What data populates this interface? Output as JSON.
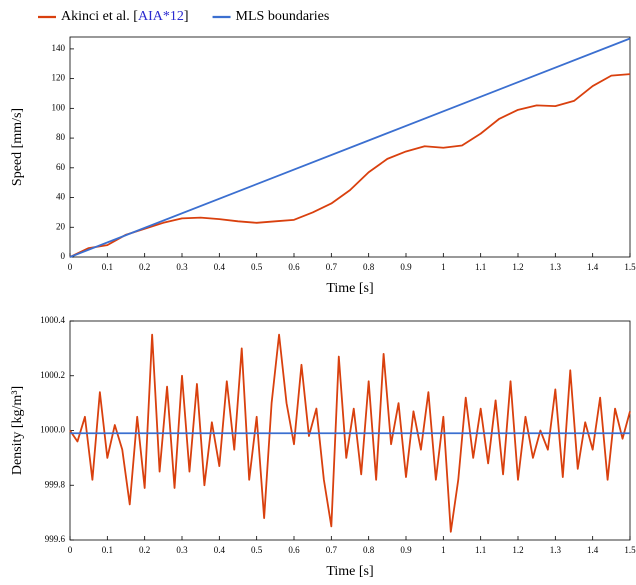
{
  "chart_data": [
    {
      "type": "line",
      "xlabel": "Time [s]",
      "ylabel": "Speed [mm/s]",
      "xlim": [
        0,
        1.5
      ],
      "xticks": [
        0,
        0.1,
        0.2,
        0.3,
        0.4,
        0.5,
        0.6,
        0.7,
        0.8,
        0.9,
        1,
        1.1,
        1.2,
        1.3,
        1.4,
        1.5
      ],
      "ylim": [
        0,
        148
      ],
      "yticks": [
        0,
        20,
        40,
        60,
        80,
        100,
        120,
        140
      ],
      "legend": "top-left",
      "series": [
        {
          "name": "Akinci et al. [AIA*12]",
          "color": "#d9400e",
          "x": [
            0,
            0.05,
            0.1,
            0.15,
            0.2,
            0.25,
            0.3,
            0.35,
            0.4,
            0.45,
            0.5,
            0.55,
            0.6,
            0.65,
            0.7,
            0.75,
            0.8,
            0.85,
            0.9,
            0.95,
            1.0,
            1.05,
            1.1,
            1.15,
            1.2,
            1.25,
            1.3,
            1.35,
            1.4,
            1.45,
            1.5
          ],
          "values": [
            0,
            6,
            8,
            15,
            19,
            23,
            26,
            26.5,
            25.5,
            24,
            23,
            24,
            25,
            30,
            36,
            45,
            57,
            66,
            71,
            74.5,
            73.5,
            75,
            83,
            93,
            99,
            102,
            101.5,
            105,
            115,
            122,
            123
          ]
        },
        {
          "name": "MLS boundaries",
          "color": "#3b6fd0",
          "x": [
            0,
            1.5
          ],
          "values": [
            0,
            147
          ]
        }
      ]
    },
    {
      "type": "line",
      "xlabel": "Time [s]",
      "ylabel": "Density [kg/m³]",
      "xlim": [
        0,
        1.5
      ],
      "xticks": [
        0,
        0.1,
        0.2,
        0.3,
        0.4,
        0.5,
        0.6,
        0.7,
        0.8,
        0.9,
        1,
        1.1,
        1.2,
        1.3,
        1.4,
        1.5
      ],
      "ylim": [
        999.6,
        1000.4
      ],
      "yticks": [
        999.6,
        999.8,
        {
          "value": 1000,
          "label": "1000.0"
        },
        1000.2,
        1000.4
      ],
      "series": [
        {
          "color": "#d9400e",
          "x": [
            0,
            0.02,
            0.04,
            0.06,
            0.08,
            0.1,
            0.12,
            0.14,
            0.16,
            0.18,
            0.2,
            0.22,
            0.24,
            0.26,
            0.28,
            0.3,
            0.32,
            0.34,
            0.36,
            0.38,
            0.4,
            0.42,
            0.44,
            0.46,
            0.48,
            0.5,
            0.52,
            0.54,
            0.56,
            0.58,
            0.6,
            0.62,
            0.64,
            0.66,
            0.68,
            0.7,
            0.72,
            0.74,
            0.76,
            0.78,
            0.8,
            0.82,
            0.84,
            0.86,
            0.88,
            0.9,
            0.92,
            0.94,
            0.96,
            0.98,
            1.0,
            1.02,
            1.04,
            1.06,
            1.08,
            1.1,
            1.12,
            1.14,
            1.16,
            1.18,
            1.2,
            1.22,
            1.24,
            1.26,
            1.28,
            1.3,
            1.32,
            1.34,
            1.36,
            1.38,
            1.4,
            1.42,
            1.44,
            1.46,
            1.48,
            1.5
          ],
          "values": [
            1000.0,
            999.96,
            1000.05,
            999.82,
            1000.14,
            999.9,
            1000.02,
            999.93,
            999.73,
            1000.05,
            999.79,
            1000.35,
            999.85,
            1000.16,
            999.79,
            1000.2,
            999.85,
            1000.17,
            999.8,
            1000.03,
            999.87,
            1000.18,
            999.93,
            1000.3,
            999.82,
            1000.05,
            999.68,
            1000.1,
            1000.35,
            1000.1,
            999.95,
            1000.24,
            999.98,
            1000.08,
            999.82,
            999.65,
            1000.27,
            999.9,
            1000.08,
            999.84,
            1000.18,
            999.82,
            1000.28,
            999.95,
            1000.1,
            999.83,
            1000.07,
            999.93,
            1000.14,
            999.82,
            1000.05,
            999.63,
            999.82,
            1000.12,
            999.9,
            1000.08,
            999.88,
            1000.11,
            999.84,
            1000.18,
            999.82,
            1000.05,
            999.9,
            1000.0,
            999.93,
            1000.15,
            999.83,
            1000.22,
            999.86,
            1000.03,
            999.93,
            1000.12,
            999.82,
            1000.08,
            999.97,
            1000.07
          ]
        },
        {
          "color": "#3b6fd0",
          "x": [
            0,
            1.5
          ],
          "values": [
            999.99,
            999.99
          ]
        }
      ]
    }
  ]
}
